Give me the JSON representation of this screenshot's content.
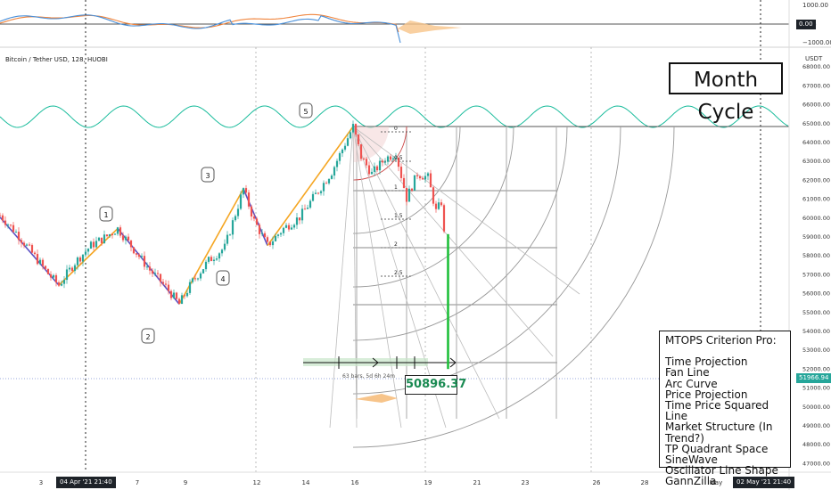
{
  "header": {
    "title": "Bitcoin / Tether USD, 128, HUOBI",
    "cycle_label": "Month Cycle"
  },
  "oscillator": {
    "ticks": [
      "1000.00",
      "0.00",
      "−1000.00"
    ],
    "zero_tag": "0.00",
    "colors": {
      "fast": "#4a90d9",
      "slow": "#f0843c"
    }
  },
  "price_axis": {
    "currency": "USDT",
    "ticks": [
      "68000.00",
      "67000.00",
      "66000.00",
      "65000.00",
      "64000.00",
      "63000.00",
      "62000.00",
      "61000.00",
      "60000.00",
      "59000.00",
      "58000.00",
      "57000.00",
      "56000.00",
      "55000.00",
      "54000.00",
      "53000.00",
      "52000.00",
      "51000.00",
      "50000.00",
      "49000.00",
      "48000.00",
      "47000.00"
    ],
    "last_price_tag": "51966.94",
    "last_price_color": "#26a69a"
  },
  "time_axis": {
    "ticks": [
      "3",
      "7",
      "9",
      "12",
      "14",
      "16",
      "19",
      "21",
      "23",
      "26",
      "28",
      "May"
    ],
    "cursor_labels": [
      "04 Apr '21  21:40",
      "02 May '21  21:40"
    ]
  },
  "chart_data": {
    "type": "candlestick",
    "title": "Bitcoin / Tether USD, 128, HUOBI",
    "ylim": [
      46500,
      69000
    ],
    "xlim": [
      2.0,
      31.5
    ],
    "x_unit": "day of April 2021",
    "structure_points": [
      {
        "label": "",
        "x": 2.0,
        "y": 60000
      },
      {
        "label": "",
        "x": 4.2,
        "y": 56400
      },
      {
        "label": "1",
        "x": 6.4,
        "y": 59400
      },
      {
        "label": "2",
        "x": 8.7,
        "y": 55400
      },
      {
        "label": "3",
        "x": 11.1,
        "y": 61500
      },
      {
        "label": "4",
        "x": 12.0,
        "y": 58500
      },
      {
        "label": "5",
        "x": 15.2,
        "y": 64800
      }
    ],
    "price_path": [
      [
        2.0,
        60100
      ],
      [
        2.6,
        59200
      ],
      [
        3.2,
        58100
      ],
      [
        3.8,
        57000
      ],
      [
        4.2,
        56400
      ],
      [
        4.8,
        57600
      ],
      [
        5.4,
        58500
      ],
      [
        6.0,
        59000
      ],
      [
        6.4,
        59400
      ],
      [
        7.0,
        58300
      ],
      [
        7.6,
        57200
      ],
      [
        8.2,
        56300
      ],
      [
        8.7,
        55400
      ],
      [
        9.2,
        56600
      ],
      [
        9.8,
        57700
      ],
      [
        10.4,
        58400
      ],
      [
        11.1,
        61500
      ],
      [
        11.5,
        59800
      ],
      [
        12.0,
        58500
      ],
      [
        12.6,
        59400
      ],
      [
        13.2,
        60000
      ],
      [
        13.8,
        61200
      ],
      [
        14.4,
        62400
      ],
      [
        15.2,
        64800
      ],
      [
        15.5,
        63200
      ],
      [
        15.9,
        62300
      ],
      [
        16.4,
        63100
      ],
      [
        16.8,
        63400
      ],
      [
        17.2,
        61000
      ],
      [
        17.6,
        62300
      ],
      [
        18.0,
        62100
      ],
      [
        18.3,
        60300
      ],
      [
        18.5,
        60800
      ],
      [
        18.6,
        59100
      ],
      [
        18.75,
        51966.94
      ]
    ],
    "fan_levels": [
      "0",
      "0.5",
      "1",
      "1.5",
      "2",
      "2.5"
    ],
    "measure_label": "63 bars, 5d 6h 24m",
    "projected_price": "50896.37",
    "colors": {
      "up": "#26a69a",
      "down": "#ef5350",
      "wave": "#1abc9c",
      "zig_up": "#f5a623",
      "zig_down": "#5b4fc4",
      "grid": "#9e9e9e"
    }
  },
  "legend_box": {
    "heading": "MTOPS Criterion Pro:",
    "items": [
      "Time Projection",
      "Fan Line",
      "Arc Curve",
      "Price Projection",
      "Time Price Squared Line",
      "Market Structure (In Trend?)",
      "TP Quadrant Space",
      "SineWave",
      "Oscillator Line Shape",
      "GannZilla"
    ]
  }
}
